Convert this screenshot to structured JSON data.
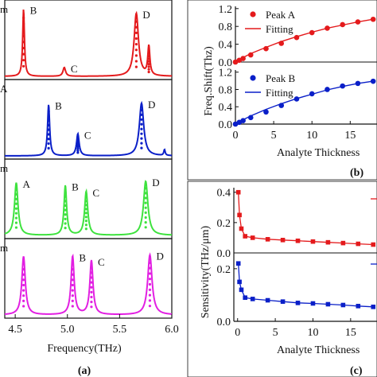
{
  "colors": {
    "red": "#e41a1c",
    "blue": "#0a1fc8",
    "green": "#3ee23e",
    "magenta": "#e21fe2",
    "axis": "#111111"
  },
  "panel_labels": {
    "a": "(a)",
    "b": "(b)",
    "c": "(c)"
  },
  "chart_data": [
    {
      "id": "a",
      "type": "line",
      "xlabel": "Frequency(THz)",
      "xlim": [
        4.4,
        6.0
      ],
      "xticks": [
        "4.5",
        "5.0",
        "5.5",
        "6.0"
      ],
      "xtick_values": [
        4.5,
        5.0,
        5.5,
        6.0
      ],
      "grid": false,
      "subplots": [
        {
          "color_key": "red",
          "label_fragment": "m",
          "peaks": [
            {
              "name": "B",
              "x": 4.58,
              "height": 0.92,
              "width": 0.01
            },
            {
              "name": "C",
              "x": 4.97,
              "height": 0.12,
              "width": 0.015
            },
            {
              "name": "D",
              "x": 5.66,
              "height": 0.86,
              "width": 0.025
            },
            {
              "name": "",
              "x": 5.78,
              "height": 0.4,
              "width": 0.012
            }
          ]
        },
        {
          "color_key": "blue",
          "label_fragment": "A",
          "peaks": [
            {
              "name": "B",
              "x": 4.82,
              "height": 0.7,
              "width": 0.012
            },
            {
              "name": "C",
              "x": 5.1,
              "height": 0.3,
              "width": 0.015
            },
            {
              "name": "D",
              "x": 5.71,
              "height": 0.72,
              "width": 0.025
            },
            {
              "name": "",
              "x": 5.93,
              "height": 0.08,
              "width": 0.008
            }
          ]
        },
        {
          "color_key": "green",
          "label_fragment": "m",
          "peaks": [
            {
              "name": "A",
              "x": 4.51,
              "height": 0.72,
              "width": 0.02
            },
            {
              "name": "B",
              "x": 4.98,
              "height": 0.68,
              "width": 0.015
            },
            {
              "name": "C",
              "x": 5.18,
              "height": 0.6,
              "width": 0.018
            },
            {
              "name": "D",
              "x": 5.75,
              "height": 0.74,
              "width": 0.025
            }
          ]
        },
        {
          "color_key": "magenta",
          "label_fragment": "m",
          "peaks": [
            {
              "name": "",
              "x": 4.58,
              "height": 0.8,
              "width": 0.02
            },
            {
              "name": "B",
              "x": 5.05,
              "height": 0.8,
              "width": 0.018
            },
            {
              "name": "C",
              "x": 5.23,
              "height": 0.74,
              "width": 0.018
            },
            {
              "name": "D",
              "x": 5.79,
              "height": 0.82,
              "width": 0.025
            }
          ]
        }
      ]
    },
    {
      "id": "b",
      "type": "scatter",
      "ylabel": "Freq.Shift(Thz)",
      "xlabel": "Analyte Thickness",
      "xlim": [
        0,
        18.5
      ],
      "xticks": [
        "0",
        "5",
        "10",
        "15"
      ],
      "xtick_values": [
        0,
        5,
        10,
        15
      ],
      "ylim": [
        0,
        1.25
      ],
      "yticks": [
        "0.0",
        "0.4",
        "0.8",
        "1.2"
      ],
      "ytick_values": [
        0.0,
        0.4,
        0.8,
        1.2
      ],
      "yticks_low": [
        "0.0",
        "0.4",
        "0.8",
        "1.2"
      ],
      "ytick_values_low": [
        0.0,
        0.4,
        0.8,
        1.2
      ],
      "series": [
        {
          "name": "Peak A",
          "fit_name": "Fitting",
          "color_key": "red",
          "marker": "circle",
          "x": [
            0,
            0.5,
            1,
            2,
            4,
            6,
            8,
            10,
            12,
            14,
            16,
            18
          ],
          "y": [
            0.0,
            0.04,
            0.08,
            0.16,
            0.3,
            0.42,
            0.55,
            0.66,
            0.76,
            0.84,
            0.9,
            0.96
          ],
          "fit": [
            0.0,
            0.05,
            0.1,
            0.19,
            0.33,
            0.46,
            0.57,
            0.67,
            0.76,
            0.83,
            0.9,
            0.96
          ]
        },
        {
          "name": "Peak B",
          "fit_name": "Fitting",
          "color_key": "blue",
          "marker": "circle",
          "x": [
            0,
            0.5,
            1,
            2,
            4,
            6,
            8,
            10,
            12,
            14,
            16,
            18
          ],
          "y": [
            0.0,
            0.04,
            0.08,
            0.15,
            0.28,
            0.43,
            0.58,
            0.7,
            0.8,
            0.88,
            0.94,
            0.99
          ],
          "fit": [
            0.0,
            0.05,
            0.1,
            0.19,
            0.34,
            0.47,
            0.59,
            0.69,
            0.79,
            0.87,
            0.94,
            0.99
          ]
        }
      ]
    },
    {
      "id": "c",
      "type": "line",
      "ylabel": "Sensitivity(THz/μm)",
      "xlabel": "Analyte Thickness",
      "xlim": [
        -0.5,
        18.5
      ],
      "xticks": [
        "0",
        "5",
        "10",
        "15"
      ],
      "xtick_values": [
        0,
        5,
        10,
        15
      ],
      "ylim": [
        0,
        0.43
      ],
      "yticks": [
        "0.0",
        "0.2",
        "0.4"
      ],
      "ytick_values": [
        0.0,
        0.2,
        0.4
      ],
      "yticks_low": [
        "0.0",
        "0.2"
      ],
      "ytick_values_low": [
        0.0,
        0.2
      ],
      "series": [
        {
          "color_key": "red",
          "marker": "square",
          "x": [
            0.1,
            0.25,
            0.5,
            1,
            2,
            4,
            6,
            8,
            10,
            12,
            14,
            16,
            18
          ],
          "y": [
            0.4,
            0.25,
            0.16,
            0.11,
            0.1,
            0.09,
            0.085,
            0.08,
            0.075,
            0.07,
            0.065,
            0.06,
            0.055
          ]
        },
        {
          "color_key": "blue",
          "marker": "square",
          "x": [
            0.1,
            0.25,
            0.5,
            1,
            2,
            4,
            6,
            8,
            10,
            12,
            14,
            16,
            18
          ],
          "y": [
            0.22,
            0.15,
            0.12,
            0.09,
            0.085,
            0.08,
            0.075,
            0.07,
            0.068,
            0.065,
            0.062,
            0.058,
            0.055
          ]
        }
      ]
    }
  ]
}
